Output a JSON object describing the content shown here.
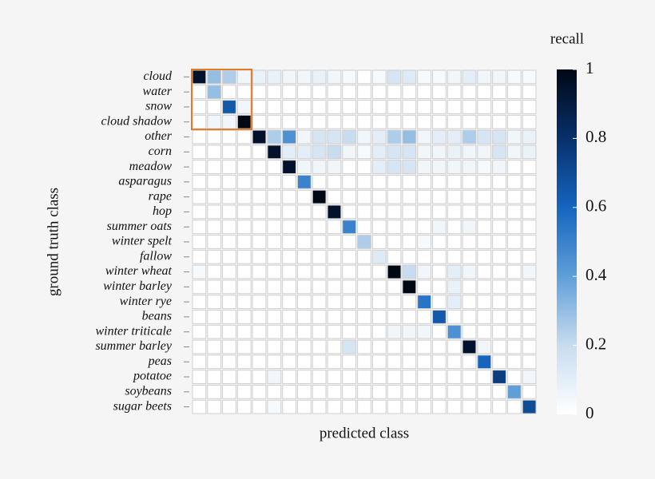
{
  "chart_data": {
    "type": "heatmap",
    "x_label": "predicted class",
    "y_label": "ground truth class",
    "colorbar_label": "recall",
    "categories": [
      "cloud",
      "water",
      "snow",
      "cloud shadow",
      "other",
      "corn",
      "meadow",
      "asparagus",
      "rape",
      "hop",
      "summer oats",
      "winter spelt",
      "fallow",
      "winter wheat",
      "winter barley",
      "winter rye",
      "beans",
      "winter triticale",
      "summer barley",
      "peas",
      "potatoe",
      "soybeans",
      "sugar beets"
    ],
    "values": [
      [
        0.95,
        0.3,
        0.25,
        0.05,
        0.08,
        0.08,
        0.05,
        0.05,
        0.08,
        0.05,
        0.03,
        0,
        0.03,
        0.15,
        0.12,
        0.03,
        0.03,
        0.05,
        0.1,
        0.05,
        0.05,
        0.03,
        0.03
      ],
      [
        0,
        0.3,
        0,
        0,
        0,
        0,
        0,
        0,
        0,
        0,
        0,
        0,
        0,
        0,
        0,
        0,
        0,
        0,
        0,
        0,
        0,
        0,
        0
      ],
      [
        0,
        0,
        0.65,
        0.05,
        0,
        0,
        0,
        0,
        0,
        0,
        0,
        0,
        0,
        0,
        0,
        0,
        0,
        0,
        0,
        0,
        0,
        0,
        0
      ],
      [
        0,
        0.05,
        0.05,
        1,
        0,
        0,
        0,
        0,
        0,
        0,
        0,
        0,
        0,
        0,
        0,
        0,
        0,
        0,
        0,
        0,
        0,
        0,
        0
      ],
      [
        0,
        0,
        0,
        0,
        0.95,
        0.25,
        0.45,
        0.05,
        0.15,
        0.15,
        0.2,
        0.05,
        0.1,
        0.25,
        0.3,
        0.05,
        0.1,
        0.1,
        0.25,
        0.15,
        0.15,
        0.05,
        0.08
      ],
      [
        0,
        0,
        0,
        0,
        0,
        0.95,
        0.1,
        0.1,
        0.15,
        0.2,
        0.05,
        0.03,
        0.1,
        0.15,
        0.15,
        0.05,
        0.05,
        0.08,
        0.05,
        0.05,
        0.15,
        0.05,
        0.08
      ],
      [
        0,
        0,
        0,
        0,
        0,
        0,
        0.95,
        0.05,
        0.05,
        0.05,
        0,
        0,
        0.1,
        0.15,
        0.15,
        0.05,
        0.05,
        0.05,
        0.05,
        0.03,
        0.05,
        0,
        0
      ],
      [
        0,
        0,
        0,
        0,
        0,
        0,
        0,
        0.5,
        0,
        0,
        0,
        0,
        0,
        0,
        0,
        0,
        0,
        0,
        0,
        0,
        0,
        0,
        0
      ],
      [
        0,
        0,
        0,
        0,
        0,
        0,
        0,
        0,
        1,
        0,
        0,
        0,
        0,
        0,
        0,
        0,
        0,
        0,
        0,
        0,
        0,
        0,
        0
      ],
      [
        0,
        0,
        0,
        0,
        0,
        0,
        0,
        0,
        0,
        0.95,
        0,
        0,
        0,
        0,
        0,
        0,
        0,
        0,
        0,
        0,
        0,
        0,
        0
      ],
      [
        0,
        0,
        0,
        0,
        0,
        0,
        0,
        0,
        0,
        0,
        0.5,
        0,
        0,
        0,
        0,
        0,
        0.05,
        0,
        0.05,
        0,
        0,
        0,
        0
      ],
      [
        0,
        0,
        0,
        0,
        0,
        0,
        0,
        0,
        0,
        0,
        0,
        0.25,
        0,
        0,
        0,
        0.03,
        0,
        0,
        0,
        0,
        0,
        0,
        0
      ],
      [
        0,
        0,
        0,
        0,
        0,
        0,
        0,
        0,
        0,
        0,
        0,
        0,
        0.12,
        0,
        0,
        0,
        0,
        0,
        0,
        0,
        0,
        0,
        0
      ],
      [
        0.03,
        0,
        0,
        0,
        0,
        0,
        0,
        0,
        0,
        0,
        0,
        0,
        0,
        1,
        0.2,
        0.05,
        0,
        0.1,
        0.05,
        0,
        0,
        0,
        0.05
      ],
      [
        0,
        0,
        0,
        0,
        0,
        0,
        0,
        0,
        0,
        0,
        0,
        0,
        0,
        0,
        1,
        0,
        0,
        0.08,
        0,
        0,
        0,
        0,
        0
      ],
      [
        0,
        0,
        0,
        0,
        0,
        0,
        0,
        0,
        0,
        0,
        0,
        0,
        0,
        0,
        0,
        0.55,
        0,
        0.1,
        0,
        0,
        0,
        0,
        0
      ],
      [
        0,
        0,
        0,
        0,
        0,
        0,
        0,
        0,
        0,
        0,
        0,
        0,
        0,
        0,
        0,
        0,
        0.65,
        0,
        0,
        0,
        0,
        0,
        0
      ],
      [
        0,
        0,
        0,
        0,
        0,
        0,
        0,
        0,
        0,
        0,
        0,
        0,
        0,
        0.05,
        0.05,
        0.05,
        0,
        0.45,
        0,
        0,
        0,
        0,
        0
      ],
      [
        0,
        0,
        0,
        0,
        0,
        0,
        0,
        0,
        0,
        0,
        0.15,
        0,
        0,
        0,
        0,
        0,
        0,
        0,
        0.95,
        0.05,
        0,
        0,
        0
      ],
      [
        0,
        0,
        0,
        0,
        0,
        0,
        0,
        0,
        0,
        0,
        0,
        0,
        0,
        0,
        0,
        0,
        0,
        0,
        0,
        0.6,
        0,
        0,
        0
      ],
      [
        0,
        0,
        0,
        0,
        0,
        0.05,
        0,
        0,
        0,
        0,
        0,
        0,
        0,
        0,
        0,
        0,
        0,
        0,
        0,
        0,
        0.75,
        0,
        0.05
      ],
      [
        0,
        0,
        0,
        0,
        0,
        0,
        0,
        0,
        0,
        0,
        0,
        0,
        0,
        0,
        0,
        0,
        0,
        0,
        0,
        0,
        0,
        0.4,
        0
      ],
      [
        0,
        0,
        0,
        0,
        0,
        0.03,
        0,
        0,
        0,
        0,
        0,
        0,
        0,
        0,
        0,
        0,
        0,
        0,
        0,
        0,
        0,
        0,
        0.7
      ]
    ],
    "colormap": [
      "#ffffff",
      "#c8dcf0",
      "#5f9fd8",
      "#1565c0",
      "#08306b",
      "#000814"
    ],
    "clim": [
      0,
      1
    ],
    "cticks": [
      0,
      0.2,
      0.4,
      0.6,
      0.8,
      1
    ],
    "highlight_color": "#e07b2a"
  }
}
